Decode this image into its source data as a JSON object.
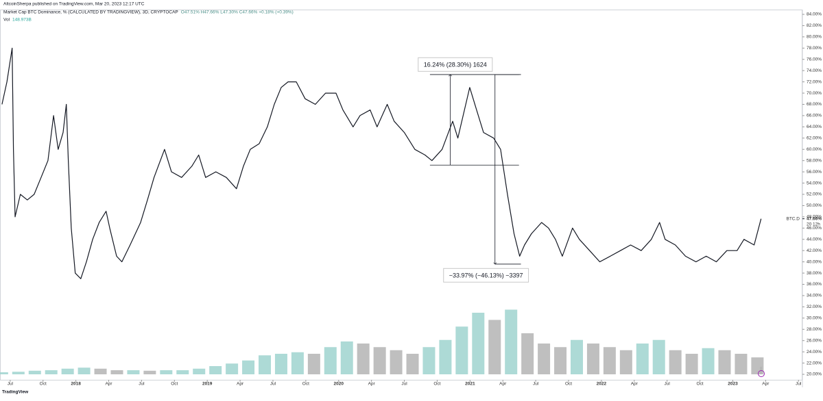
{
  "header": {
    "publisher": "AltcoinSherpa published on TradingView.com, Mar 20, 2023 12:17 UTC",
    "footer": "TradingView"
  },
  "chart_data": {
    "type": "line",
    "title": "Market Cap BTC Dominance, % (CALCULATED BY TRADINGVIEW), 3D, CRYPTOCAP",
    "ohlc": "O47.51% H47.66% L47.30% C47.66% +0.18% (+0.39%)",
    "volume_name": "Vol",
    "volume_last": "148.973B",
    "symbol": "BTC.D",
    "countdown": "20 12h",
    "last_price": {
      "value": 47.66,
      "label": "47.66%"
    },
    "xlim": [
      -0.31,
      24.12
    ],
    "xticks": [
      {
        "value": 0,
        "label": "Jul"
      },
      {
        "value": 1,
        "label": "Oct"
      },
      {
        "value": 2,
        "label": "2018"
      },
      {
        "value": 3,
        "label": "Apr"
      },
      {
        "value": 4,
        "label": "Jul"
      },
      {
        "value": 5,
        "label": "Oct"
      },
      {
        "value": 6,
        "label": "2019"
      },
      {
        "value": 7,
        "label": "Apr"
      },
      {
        "value": 8,
        "label": "Jul"
      },
      {
        "value": 9,
        "label": "Oct"
      },
      {
        "value": 10,
        "label": "2020"
      },
      {
        "value": 11,
        "label": "Apr"
      },
      {
        "value": 12,
        "label": "Jul"
      },
      {
        "value": 13,
        "label": "Oct"
      },
      {
        "value": 14,
        "label": "2021"
      },
      {
        "value": 15,
        "label": "Apr"
      },
      {
        "value": 16,
        "label": "Jul"
      },
      {
        "value": 17,
        "label": "Oct"
      },
      {
        "value": 18,
        "label": "2022"
      },
      {
        "value": 19,
        "label": "Apr"
      },
      {
        "value": 20,
        "label": "Jul"
      },
      {
        "value": 21,
        "label": "Oct"
      },
      {
        "value": 22,
        "label": "2023"
      },
      {
        "value": 23,
        "label": "Apr"
      },
      {
        "value": 24,
        "label": "Jul"
      }
    ],
    "ylim": [
      19.03,
      84.85
    ],
    "yticks": [
      {
        "value": 84,
        "label": "84.00%"
      },
      {
        "value": 82,
        "label": "82.00%"
      },
      {
        "value": 80,
        "label": "80.00%"
      },
      {
        "value": 78,
        "label": "78.00%"
      },
      {
        "value": 76,
        "label": "76.00%"
      },
      {
        "value": 74,
        "label": "74.00%"
      },
      {
        "value": 72,
        "label": "72.00%"
      },
      {
        "value": 70,
        "label": "70.00%"
      },
      {
        "value": 68,
        "label": "68.00%"
      },
      {
        "value": 66,
        "label": "66.00%"
      },
      {
        "value": 64,
        "label": "64.00%"
      },
      {
        "value": 62,
        "label": "62.00%"
      },
      {
        "value": 60,
        "label": "60.00%"
      },
      {
        "value": 58,
        "label": "58.00%"
      },
      {
        "value": 56,
        "label": "56.00%"
      },
      {
        "value": 54,
        "label": "54.00%"
      },
      {
        "value": 52,
        "label": "52.00%"
      },
      {
        "value": 50,
        "label": "50.00%"
      },
      {
        "value": 48,
        "label": "48.00%"
      },
      {
        "value": 46,
        "label": "46.00%"
      },
      {
        "value": 44,
        "label": "44.00%"
      },
      {
        "value": 42,
        "label": "42.00%"
      },
      {
        "value": 40,
        "label": "40.00%"
      },
      {
        "value": 38,
        "label": "38.00%"
      },
      {
        "value": 36,
        "label": "36.00%"
      },
      {
        "value": 34,
        "label": "34.00%"
      },
      {
        "value": 32,
        "label": "32.00%"
      },
      {
        "value": 30,
        "label": "30.00%"
      },
      {
        "value": 28,
        "label": "28.00%"
      },
      {
        "value": 26,
        "label": "26.00%"
      },
      {
        "value": 24,
        "label": "24.00%"
      },
      {
        "value": 22,
        "label": "22.00%"
      },
      {
        "value": 20,
        "label": "20.00%"
      }
    ],
    "y2lim": [
      0,
      2000
    ],
    "series": [
      {
        "color": "#131722",
        "x": [
          -0.25,
          -0.1,
          0.06,
          0.1,
          0.15,
          0.31,
          0.52,
          0.73,
          0.94,
          1.15,
          1.32,
          1.46,
          1.61,
          1.71,
          1.77,
          1.86,
          1.98,
          2.15,
          2.32,
          2.51,
          2.71,
          2.92,
          3.03,
          3.24,
          3.4,
          3.65,
          3.97,
          4.18,
          4.38,
          4.7,
          4.91,
          5.22,
          5.53,
          5.74,
          5.95,
          6.26,
          6.58,
          6.89,
          7.1,
          7.31,
          7.58,
          7.83,
          8.04,
          8.25,
          8.46,
          8.71,
          8.98,
          9.29,
          9.6,
          9.92,
          10.13,
          10.44,
          10.65,
          10.96,
          11.17,
          11.48,
          11.69,
          12.0,
          12.32,
          12.63,
          12.84,
          13.15,
          13.47,
          13.63,
          13.99,
          14.2,
          14.41,
          14.72,
          14.93,
          15.14,
          15.34,
          15.51,
          15.66,
          15.87,
          16.18,
          16.39,
          16.6,
          16.81,
          17.12,
          17.33,
          17.64,
          17.95,
          18.27,
          18.58,
          18.89,
          19.21,
          19.52,
          19.77,
          19.94,
          20.25,
          20.56,
          20.88,
          21.19,
          21.5,
          21.82,
          22.13,
          22.34,
          22.65,
          22.86
        ],
        "values": [
          68,
          72,
          78,
          60,
          48,
          52,
          51,
          52,
          55,
          58,
          66,
          60,
          63,
          68,
          58,
          46,
          38,
          37,
          40,
          44,
          47,
          49,
          46,
          41,
          40,
          43,
          47,
          51,
          55,
          60,
          56,
          55,
          57,
          59,
          55,
          56,
          55,
          53,
          57,
          60,
          61,
          64,
          68,
          71,
          72,
          72,
          69,
          68,
          70,
          70,
          67,
          64,
          66,
          67,
          64,
          68,
          65,
          63,
          60,
          59,
          58,
          60,
          65,
          62,
          71,
          67,
          63,
          62,
          60,
          52,
          45,
          41,
          43,
          45,
          47,
          46,
          44,
          41,
          46,
          44,
          42,
          40,
          41,
          42,
          43,
          42,
          44,
          47,
          44,
          43,
          41,
          40,
          41,
          40,
          42,
          42,
          44,
          43,
          47.66
        ]
      },
      {
        "axis": "y2",
        "up_color": "#9fd4cf",
        "down_color": "#b4b4b4",
        "x": [
          -0.25,
          0.25,
          0.75,
          1.25,
          1.75,
          2.25,
          2.75,
          3.25,
          3.75,
          4.25,
          4.75,
          5.25,
          5.75,
          6.25,
          6.75,
          7.25,
          7.75,
          8.25,
          8.75,
          9.25,
          9.75,
          10.25,
          10.75,
          11.25,
          11.75,
          12.25,
          12.75,
          13.25,
          13.75,
          14.25,
          14.75,
          15.25,
          15.75,
          16.25,
          16.75,
          17.25,
          17.75,
          18.25,
          18.75,
          19.25,
          19.75,
          20.25,
          20.75,
          21.25,
          21.75,
          22.25,
          22.75,
          22.86
        ],
        "values": [
          40,
          50,
          70,
          80,
          110,
          130,
          110,
          80,
          80,
          70,
          80,
          80,
          110,
          160,
          210,
          270,
          370,
          400,
          430,
          400,
          530,
          640,
          600,
          530,
          470,
          400,
          530,
          670,
          930,
          1200,
          1060,
          1260,
          800,
          600,
          530,
          670,
          600,
          530,
          470,
          600,
          670,
          470,
          400,
          510,
          470,
          400,
          330,
          148.973
        ]
      }
    ],
    "measurements": [
      {
        "label": "16.24% (28.30%) 1624",
        "from": 57.2,
        "to": 73.3,
        "x": [
          12.78,
          15.49
        ],
        "arrow_x": 13.4
      },
      {
        "label": "−33.97% (−46.13%) −3397",
        "from": 73.3,
        "to": 39.6,
        "x": [
          14.76,
          15.55
        ],
        "arrow_x": 14.76
      }
    ]
  }
}
